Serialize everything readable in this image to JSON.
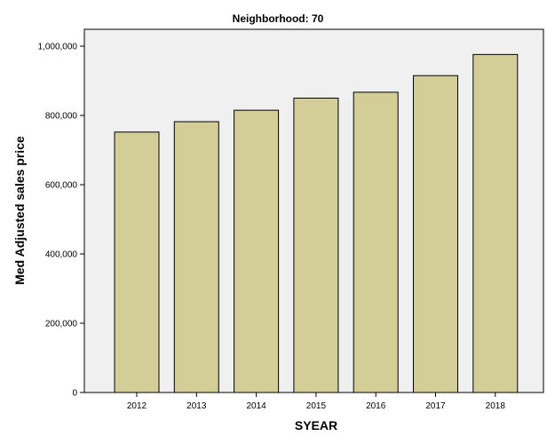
{
  "chart_data": {
    "type": "bar",
    "title": "Neighborhood: 70",
    "xlabel": "SYEAR",
    "ylabel": "Med Adjusted sales price",
    "categories": [
      "2012",
      "2013",
      "2014",
      "2015",
      "2016",
      "2017",
      "2018"
    ],
    "values": [
      752000,
      782000,
      815000,
      850000,
      867000,
      915000,
      976000
    ],
    "ylim": [
      0,
      1000000
    ],
    "yticks": [
      0,
      200000,
      400000,
      600000,
      800000,
      1000000
    ],
    "ytick_labels": [
      "0",
      "200,000",
      "400,000",
      "600,000",
      "800,000",
      "1,000,000"
    ],
    "grid": false,
    "legend": "none",
    "colors": {
      "bar": "#d3ce97",
      "background": "#f0f0f0"
    }
  }
}
